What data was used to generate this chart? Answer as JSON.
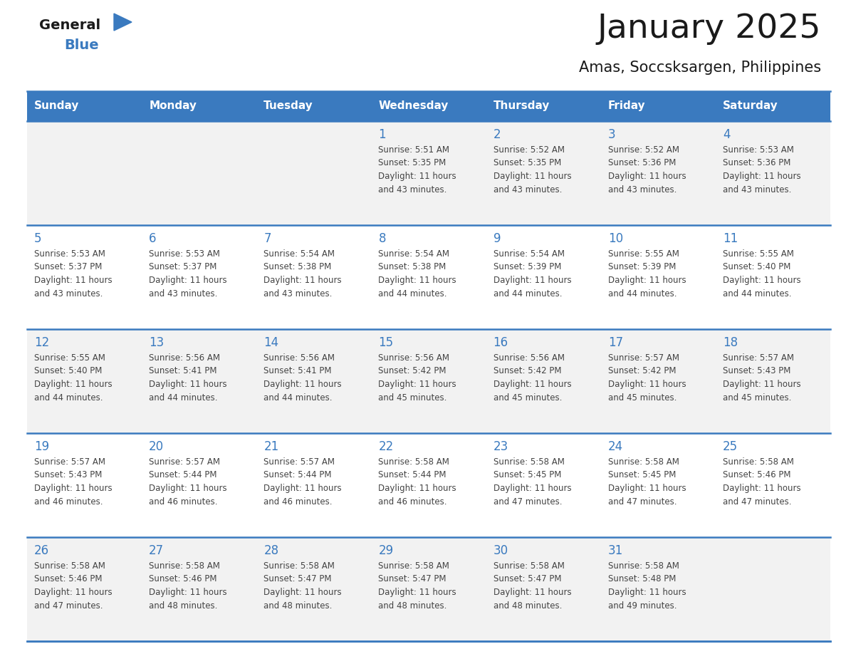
{
  "title": "January 2025",
  "subtitle": "Amas, Soccsksargen, Philippines",
  "header_bg_color": "#3a7abf",
  "header_text_color": "#ffffff",
  "cell_bg_light": "#f2f2f2",
  "cell_bg_white": "#ffffff",
  "day_number_color": "#3a7abf",
  "text_color": "#444444",
  "line_color": "#3a7abf",
  "days_of_week": [
    "Sunday",
    "Monday",
    "Tuesday",
    "Wednesday",
    "Thursday",
    "Friday",
    "Saturday"
  ],
  "weeks": [
    [
      {
        "day": null,
        "sunrise": null,
        "sunset": null,
        "daylight": null
      },
      {
        "day": null,
        "sunrise": null,
        "sunset": null,
        "daylight": null
      },
      {
        "day": null,
        "sunrise": null,
        "sunset": null,
        "daylight": null
      },
      {
        "day": 1,
        "sunrise": "5:51 AM",
        "sunset": "5:35 PM",
        "daylight": "11 hours and 43 minutes."
      },
      {
        "day": 2,
        "sunrise": "5:52 AM",
        "sunset": "5:35 PM",
        "daylight": "11 hours and 43 minutes."
      },
      {
        "day": 3,
        "sunrise": "5:52 AM",
        "sunset": "5:36 PM",
        "daylight": "11 hours and 43 minutes."
      },
      {
        "day": 4,
        "sunrise": "5:53 AM",
        "sunset": "5:36 PM",
        "daylight": "11 hours and 43 minutes."
      }
    ],
    [
      {
        "day": 5,
        "sunrise": "5:53 AM",
        "sunset": "5:37 PM",
        "daylight": "11 hours and 43 minutes."
      },
      {
        "day": 6,
        "sunrise": "5:53 AM",
        "sunset": "5:37 PM",
        "daylight": "11 hours and 43 minutes."
      },
      {
        "day": 7,
        "sunrise": "5:54 AM",
        "sunset": "5:38 PM",
        "daylight": "11 hours and 43 minutes."
      },
      {
        "day": 8,
        "sunrise": "5:54 AM",
        "sunset": "5:38 PM",
        "daylight": "11 hours and 44 minutes."
      },
      {
        "day": 9,
        "sunrise": "5:54 AM",
        "sunset": "5:39 PM",
        "daylight": "11 hours and 44 minutes."
      },
      {
        "day": 10,
        "sunrise": "5:55 AM",
        "sunset": "5:39 PM",
        "daylight": "11 hours and 44 minutes."
      },
      {
        "day": 11,
        "sunrise": "5:55 AM",
        "sunset": "5:40 PM",
        "daylight": "11 hours and 44 minutes."
      }
    ],
    [
      {
        "day": 12,
        "sunrise": "5:55 AM",
        "sunset": "5:40 PM",
        "daylight": "11 hours and 44 minutes."
      },
      {
        "day": 13,
        "sunrise": "5:56 AM",
        "sunset": "5:41 PM",
        "daylight": "11 hours and 44 minutes."
      },
      {
        "day": 14,
        "sunrise": "5:56 AM",
        "sunset": "5:41 PM",
        "daylight": "11 hours and 44 minutes."
      },
      {
        "day": 15,
        "sunrise": "5:56 AM",
        "sunset": "5:42 PM",
        "daylight": "11 hours and 45 minutes."
      },
      {
        "day": 16,
        "sunrise": "5:56 AM",
        "sunset": "5:42 PM",
        "daylight": "11 hours and 45 minutes."
      },
      {
        "day": 17,
        "sunrise": "5:57 AM",
        "sunset": "5:42 PM",
        "daylight": "11 hours and 45 minutes."
      },
      {
        "day": 18,
        "sunrise": "5:57 AM",
        "sunset": "5:43 PM",
        "daylight": "11 hours and 45 minutes."
      }
    ],
    [
      {
        "day": 19,
        "sunrise": "5:57 AM",
        "sunset": "5:43 PM",
        "daylight": "11 hours and 46 minutes."
      },
      {
        "day": 20,
        "sunrise": "5:57 AM",
        "sunset": "5:44 PM",
        "daylight": "11 hours and 46 minutes."
      },
      {
        "day": 21,
        "sunrise": "5:57 AM",
        "sunset": "5:44 PM",
        "daylight": "11 hours and 46 minutes."
      },
      {
        "day": 22,
        "sunrise": "5:58 AM",
        "sunset": "5:44 PM",
        "daylight": "11 hours and 46 minutes."
      },
      {
        "day": 23,
        "sunrise": "5:58 AM",
        "sunset": "5:45 PM",
        "daylight": "11 hours and 47 minutes."
      },
      {
        "day": 24,
        "sunrise": "5:58 AM",
        "sunset": "5:45 PM",
        "daylight": "11 hours and 47 minutes."
      },
      {
        "day": 25,
        "sunrise": "5:58 AM",
        "sunset": "5:46 PM",
        "daylight": "11 hours and 47 minutes."
      }
    ],
    [
      {
        "day": 26,
        "sunrise": "5:58 AM",
        "sunset": "5:46 PM",
        "daylight": "11 hours and 47 minutes."
      },
      {
        "day": 27,
        "sunrise": "5:58 AM",
        "sunset": "5:46 PM",
        "daylight": "11 hours and 48 minutes."
      },
      {
        "day": 28,
        "sunrise": "5:58 AM",
        "sunset": "5:47 PM",
        "daylight": "11 hours and 48 minutes."
      },
      {
        "day": 29,
        "sunrise": "5:58 AM",
        "sunset": "5:47 PM",
        "daylight": "11 hours and 48 minutes."
      },
      {
        "day": 30,
        "sunrise": "5:58 AM",
        "sunset": "5:47 PM",
        "daylight": "11 hours and 48 minutes."
      },
      {
        "day": 31,
        "sunrise": "5:58 AM",
        "sunset": "5:48 PM",
        "daylight": "11 hours and 49 minutes."
      },
      {
        "day": null,
        "sunrise": null,
        "sunset": null,
        "daylight": null
      }
    ]
  ]
}
